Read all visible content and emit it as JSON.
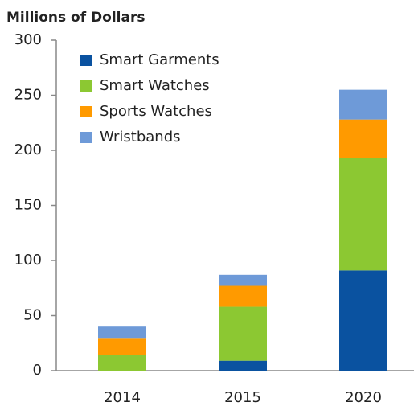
{
  "chart_data": {
    "type": "stacked_bar",
    "title": "Millions of Dollars",
    "categories": [
      "2014",
      "2015",
      "2020"
    ],
    "series": [
      {
        "name": "Smart Garments",
        "color": "#0a52a0",
        "values": [
          0,
          9,
          91
        ]
      },
      {
        "name": "Smart Watches",
        "color": "#8cc832",
        "values": [
          14,
          49,
          102
        ]
      },
      {
        "name": "Sports Watches",
        "color": "#ff9a00",
        "values": [
          15,
          19,
          35
        ]
      },
      {
        "name": "Wristbands",
        "color": "#6e9ad8",
        "values": [
          11,
          10,
          27
        ]
      }
    ],
    "ylim": [
      0,
      300
    ],
    "yticks": [
      0,
      50,
      100,
      150,
      200,
      250,
      300
    ],
    "legend": "top-left"
  }
}
